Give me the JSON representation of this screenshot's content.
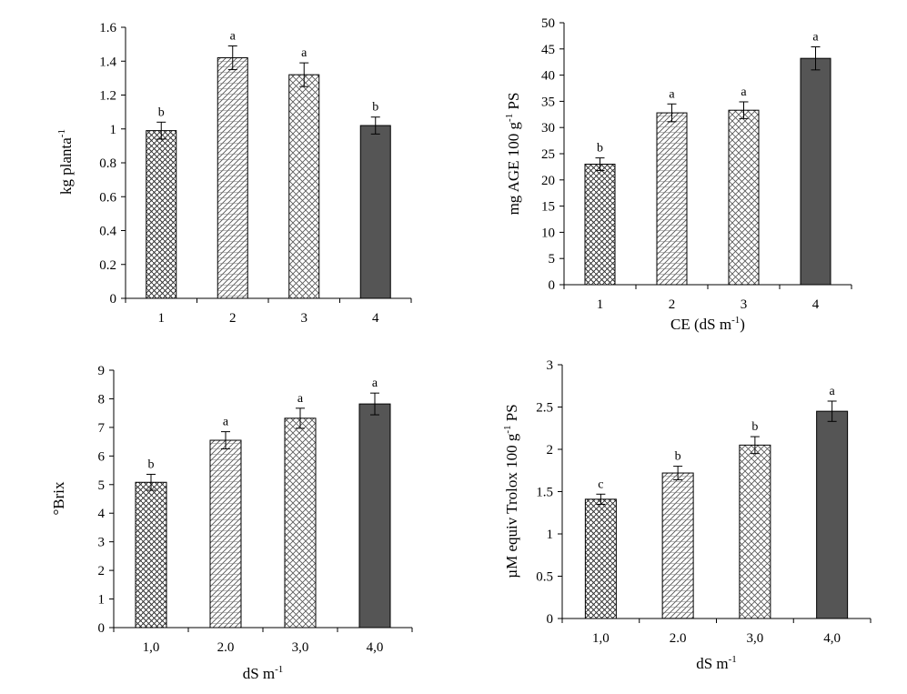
{
  "chart_data": [
    {
      "type": "bar",
      "categories": [
        "1",
        "2",
        "3",
        "4"
      ],
      "values": [
        0.99,
        1.42,
        1.32,
        1.02
      ],
      "errors": [
        0.05,
        0.07,
        0.07,
        0.05
      ],
      "letters": [
        "b",
        "a",
        "a",
        "b"
      ],
      "patterns": [
        "weave",
        "hatch",
        "cross",
        "solid"
      ],
      "ylabel": "kg planta",
      "ylabel_sup": "-1",
      "xlabel": "",
      "xlabel_sup": "",
      "ylim": [
        0,
        1.6
      ],
      "yticks": [
        "0",
        "0.2",
        "0.4",
        "0.6",
        "0.8",
        "1",
        "1.2",
        "1.4",
        "1.6"
      ],
      "grid": false
    },
    {
      "type": "bar",
      "categories": [
        "1",
        "2",
        "3",
        "4"
      ],
      "values": [
        23.0,
        32.8,
        33.3,
        43.2
      ],
      "errors": [
        1.2,
        1.7,
        1.6,
        2.2
      ],
      "letters": [
        "b",
        "a",
        "a",
        "a"
      ],
      "patterns": [
        "weave",
        "hatch",
        "cross",
        "solid"
      ],
      "ylabel": "mg AGE 100 g",
      "ylabel_sup": "-1",
      "ylabel_tail": " PS",
      "xlabel": "CE (dS m",
      "xlabel_sup": "-1",
      "xlabel_tail": ")",
      "ylim": [
        0,
        50
      ],
      "yticks": [
        "0",
        "5",
        "10",
        "15",
        "20",
        "25",
        "30",
        "35",
        "40",
        "45",
        "50"
      ],
      "grid": false
    },
    {
      "type": "bar",
      "categories": [
        "1,0",
        "2.0",
        "3,0",
        "4,0"
      ],
      "values": [
        5.08,
        6.55,
        7.32,
        7.82
      ],
      "errors": [
        0.28,
        0.3,
        0.35,
        0.38
      ],
      "letters": [
        "b",
        "a",
        "a",
        "a"
      ],
      "patterns": [
        "weave",
        "hatch",
        "cross",
        "solid"
      ],
      "ylabel": "°Brix",
      "ylabel_sup": "",
      "xlabel": "dS m",
      "xlabel_sup": "-1",
      "xlabel_tail": "",
      "ylim": [
        0,
        9
      ],
      "yticks": [
        "0",
        "1",
        "2",
        "3",
        "4",
        "5",
        "6",
        "7",
        "8",
        "9"
      ],
      "grid": false
    },
    {
      "type": "bar",
      "categories": [
        "1,0",
        "2.0",
        "3,0",
        "4,0"
      ],
      "values": [
        1.41,
        1.72,
        2.05,
        2.45
      ],
      "errors": [
        0.06,
        0.08,
        0.1,
        0.12
      ],
      "letters": [
        "c",
        "b",
        "b",
        "a"
      ],
      "patterns": [
        "weave",
        "hatch",
        "cross",
        "solid"
      ],
      "ylabel": "µM equiv Trolox 100 g",
      "ylabel_sup": "-1",
      "ylabel_tail": " PS",
      "xlabel": "dS m",
      "xlabel_sup": "-1",
      "xlabel_tail": "",
      "ylim": [
        0,
        3
      ],
      "yticks": [
        "0",
        "0.5",
        "1",
        "1.5",
        "2",
        "2.5",
        "3"
      ],
      "grid": false
    }
  ]
}
